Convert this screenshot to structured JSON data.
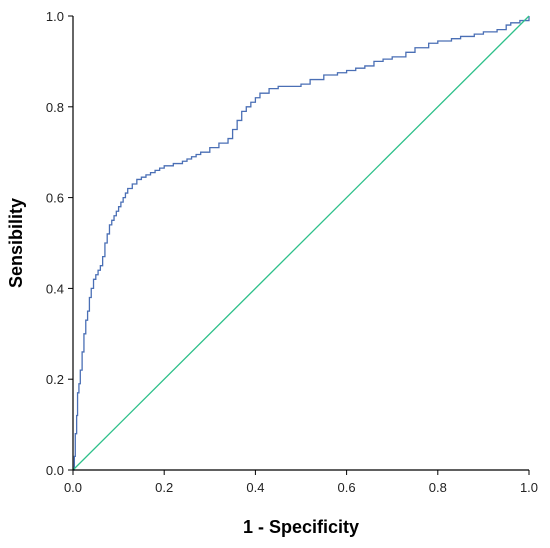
{
  "chart_data": {
    "type": "line",
    "title": "",
    "xlabel": "1 - Specificity",
    "ylabel": "Sensibility",
    "xlim": [
      0.0,
      1.0
    ],
    "ylim": [
      0.0,
      1.0
    ],
    "x_ticks": [
      "0.0",
      "0.2",
      "0.4",
      "0.6",
      "0.8",
      "1.0"
    ],
    "y_ticks": [
      "0.0",
      "0.2",
      "0.4",
      "0.6",
      "0.8",
      "1.0"
    ],
    "grid": false,
    "legend": "none",
    "series": [
      {
        "color": "#4a6fb5",
        "style": "step",
        "x": [
          0.0,
          0.003,
          0.005,
          0.008,
          0.01,
          0.013,
          0.016,
          0.02,
          0.024,
          0.028,
          0.032,
          0.036,
          0.04,
          0.045,
          0.05,
          0.055,
          0.06,
          0.065,
          0.07,
          0.075,
          0.08,
          0.085,
          0.09,
          0.095,
          0.1,
          0.105,
          0.11,
          0.115,
          0.12,
          0.13,
          0.14,
          0.15,
          0.16,
          0.17,
          0.18,
          0.19,
          0.2,
          0.22,
          0.24,
          0.25,
          0.26,
          0.27,
          0.28,
          0.3,
          0.32,
          0.34,
          0.35,
          0.36,
          0.37,
          0.38,
          0.39,
          0.4,
          0.41,
          0.43,
          0.45,
          0.5,
          0.52,
          0.55,
          0.58,
          0.6,
          0.62,
          0.64,
          0.66,
          0.68,
          0.7,
          0.73,
          0.75,
          0.78,
          0.8,
          0.83,
          0.85,
          0.88,
          0.9,
          0.93,
          0.95,
          0.96,
          0.98,
          1.0
        ],
        "y": [
          0.0,
          0.03,
          0.08,
          0.12,
          0.17,
          0.19,
          0.22,
          0.26,
          0.3,
          0.33,
          0.35,
          0.38,
          0.4,
          0.42,
          0.43,
          0.44,
          0.45,
          0.47,
          0.5,
          0.52,
          0.54,
          0.55,
          0.56,
          0.57,
          0.58,
          0.59,
          0.6,
          0.61,
          0.62,
          0.63,
          0.64,
          0.645,
          0.65,
          0.655,
          0.66,
          0.665,
          0.67,
          0.675,
          0.68,
          0.685,
          0.69,
          0.695,
          0.7,
          0.71,
          0.72,
          0.73,
          0.75,
          0.77,
          0.79,
          0.8,
          0.81,
          0.82,
          0.83,
          0.84,
          0.845,
          0.85,
          0.86,
          0.87,
          0.875,
          0.88,
          0.885,
          0.89,
          0.9,
          0.905,
          0.91,
          0.92,
          0.93,
          0.94,
          0.945,
          0.95,
          0.955,
          0.96,
          0.965,
          0.97,
          0.98,
          0.985,
          0.99,
          1.0
        ]
      },
      {
        "color": "#2ec08a",
        "style": "line",
        "x": [
          0.0,
          1.0
        ],
        "y": [
          0.0,
          1.0
        ]
      }
    ]
  }
}
